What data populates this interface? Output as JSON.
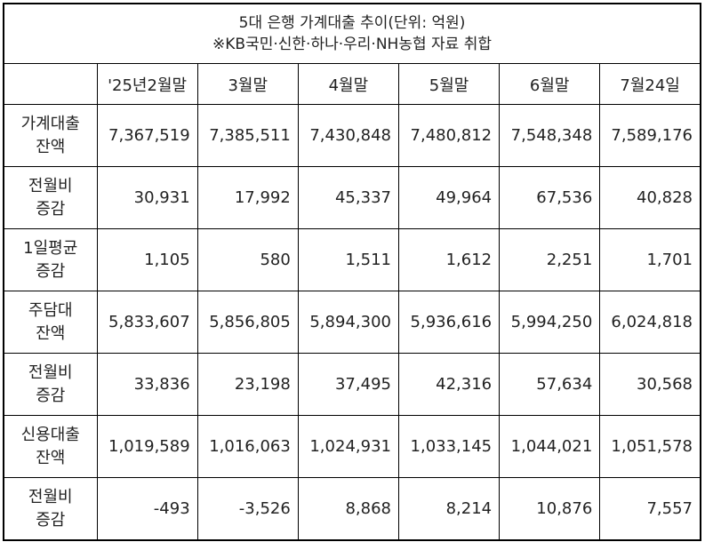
{
  "title": {
    "line1": "5대 은행 가계대출 추이(단위: 억원)",
    "line2": "※KB국민·신한·하나·우리·NH농협 자료 취합"
  },
  "table": {
    "header": [
      "'25년2월말",
      "3월말",
      "4월말",
      "5월말",
      "6월말",
      "7월24일"
    ],
    "rows": [
      {
        "label": [
          "가계대출",
          "잔액"
        ],
        "cells": [
          "7,367,519",
          "7,385,511",
          "7,430,848",
          "7,480,812",
          "7,548,348",
          "7,589,176"
        ]
      },
      {
        "label": [
          "전월비",
          "증감"
        ],
        "cells": [
          "30,931",
          "17,992",
          "45,337",
          "49,964",
          "67,536",
          "40,828"
        ]
      },
      {
        "label": [
          "1일평균",
          "증감"
        ],
        "cells": [
          "1,105",
          "580",
          "1,511",
          "1,612",
          "2,251",
          "1,701"
        ]
      },
      {
        "label": [
          "주담대",
          "잔액"
        ],
        "cells": [
          "5,833,607",
          "5,856,805",
          "5,894,300",
          "5,936,616",
          "5,994,250",
          "6,024,818"
        ]
      },
      {
        "label": [
          "전월비",
          "증감"
        ],
        "cells": [
          "33,836",
          "23,198",
          "37,495",
          "42,316",
          "57,634",
          "30,568"
        ]
      },
      {
        "label": [
          "신용대출",
          "잔액"
        ],
        "cells": [
          "1,019,589",
          "1,016,063",
          "1,024,931",
          "1,033,145",
          "1,044,021",
          "1,051,578"
        ]
      },
      {
        "label": [
          "전월비",
          "증감"
        ],
        "cells": [
          "-493",
          "-3,526",
          "8,868",
          "8,214",
          "10,876",
          "7,557"
        ]
      }
    ]
  }
}
